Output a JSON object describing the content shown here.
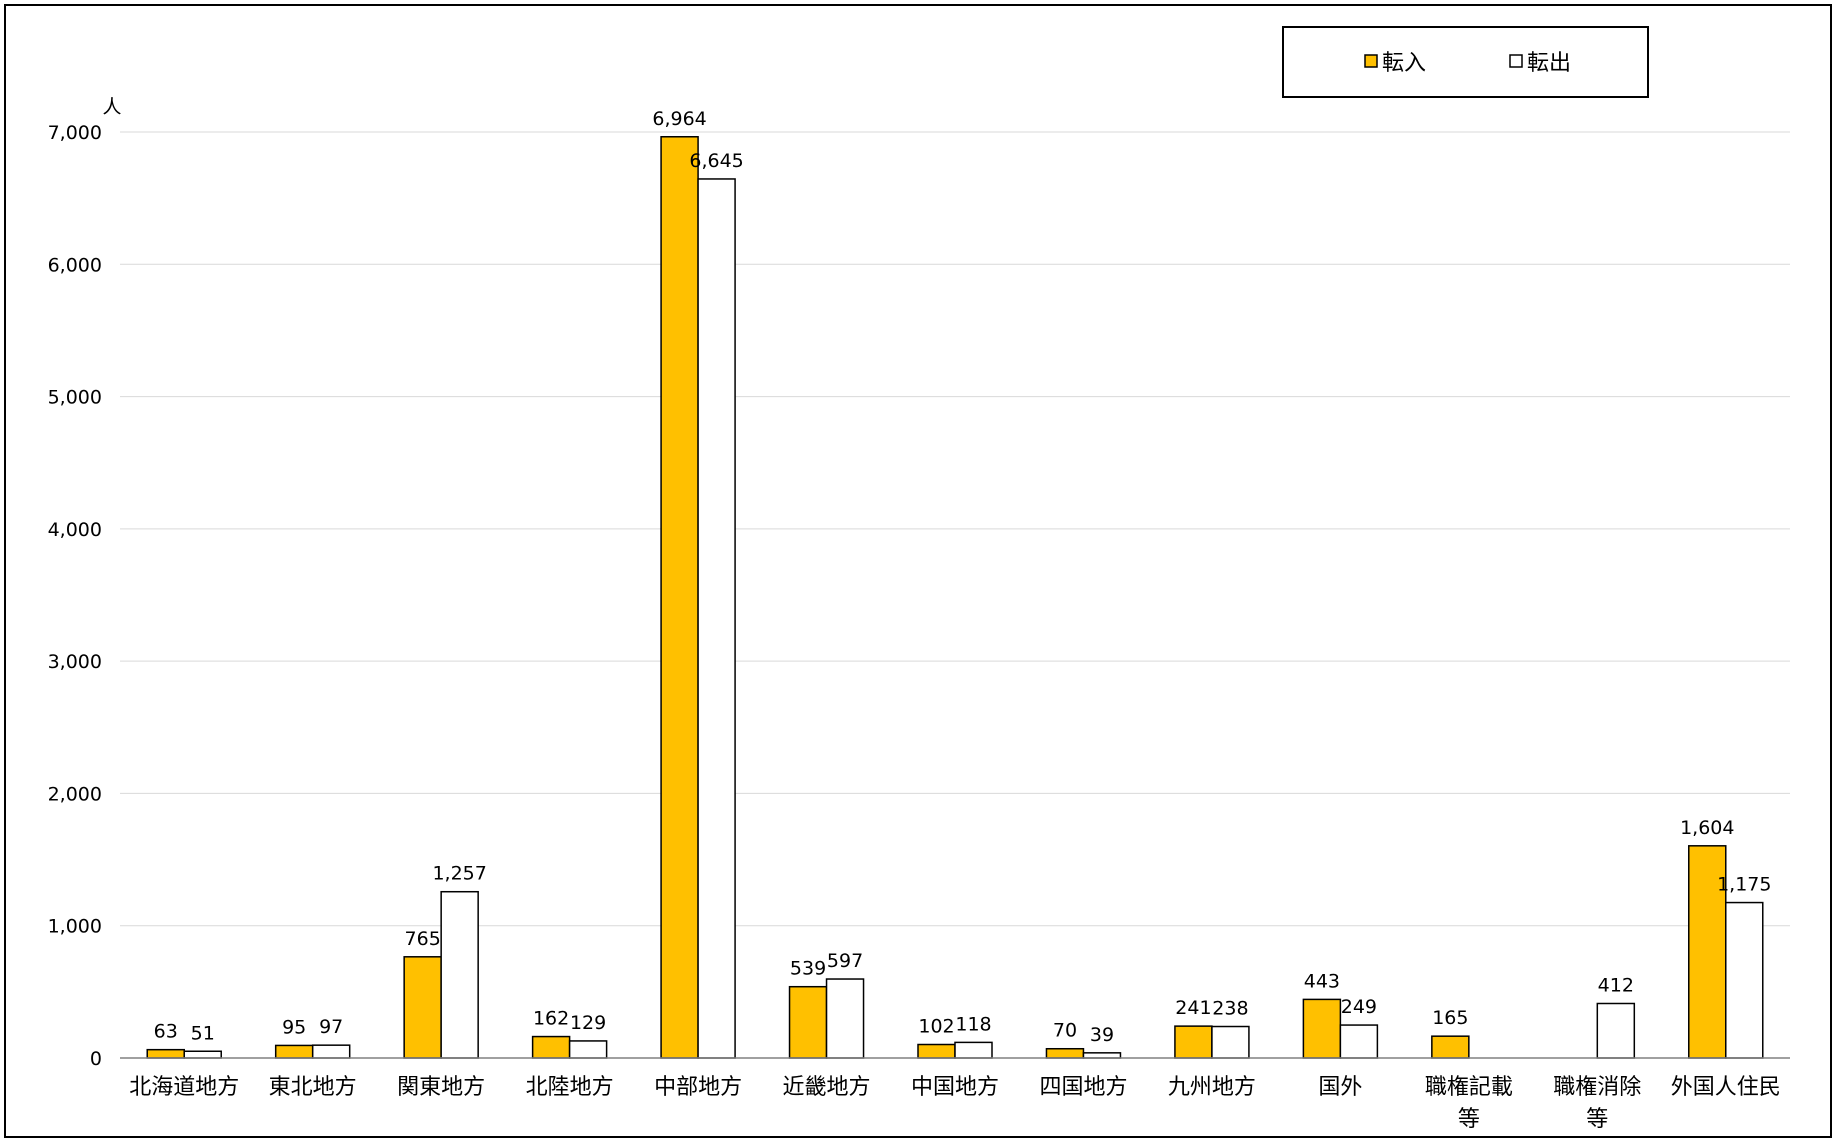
{
  "chart_data": {
    "type": "bar",
    "y_unit": "人",
    "ylim": [
      0,
      7000
    ],
    "yticks": [
      0,
      1000,
      2000,
      3000,
      4000,
      5000,
      6000,
      7000
    ],
    "ytick_labels": [
      "0",
      "1,000",
      "2,000",
      "3,000",
      "4,000",
      "5,000",
      "6,000",
      "7,000"
    ],
    "grid": true,
    "legend_position": "top-right",
    "categories": [
      [
        "北海道地方"
      ],
      [
        "東北地方"
      ],
      [
        "関東地方"
      ],
      [
        "北陸地方"
      ],
      [
        "中部地方"
      ],
      [
        "近畿地方"
      ],
      [
        "中国地方"
      ],
      [
        "四国地方"
      ],
      [
        "九州地方"
      ],
      [
        "国外"
      ],
      [
        "職権記載",
        "等"
      ],
      [
        "職権消除",
        "等"
      ],
      [
        "外国人住民"
      ]
    ],
    "series": [
      {
        "name": "転入",
        "color": "#FFC000",
        "values": [
          63,
          95,
          765,
          162,
          6964,
          539,
          102,
          70,
          241,
          443,
          165,
          null,
          1604
        ],
        "labels": [
          "63",
          "95",
          "765",
          "162",
          "6,964",
          "539",
          "102",
          "70",
          "241",
          "443",
          "165",
          "",
          "1,604"
        ]
      },
      {
        "name": "転出",
        "color": "#FFFFFF",
        "values": [
          51,
          97,
          1257,
          129,
          6645,
          597,
          118,
          39,
          238,
          249,
          null,
          412,
          1175
        ],
        "labels": [
          "51",
          "97",
          "1,257",
          "129",
          "6,645",
          "597",
          "118",
          "39",
          "238",
          "249",
          "",
          "412",
          "1,175"
        ]
      }
    ],
    "legend": [
      {
        "marker": "■",
        "name": "転入",
        "color": "#FFC000"
      },
      {
        "marker": "□",
        "name": "転出",
        "color": "#FFFFFF"
      }
    ]
  }
}
